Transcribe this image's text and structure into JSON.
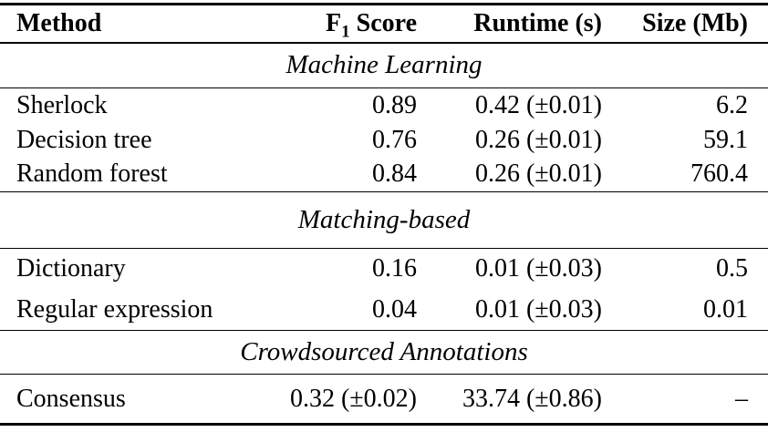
{
  "table": {
    "columns": [
      {
        "label": "Method"
      },
      {
        "label_main": "F",
        "label_sub": "1",
        "label_rest": " Score"
      },
      {
        "label": "Runtime (s)"
      },
      {
        "label": "Size (Mb)"
      }
    ],
    "sections": [
      {
        "title": "Machine Learning",
        "rows": [
          {
            "method": "Sherlock",
            "f1": "0.89",
            "runtime": "0.42 (±0.01)",
            "size": "6.2"
          },
          {
            "method": "Decision tree",
            "f1": "0.76",
            "runtime": "0.26 (±0.01)",
            "size": "59.1"
          },
          {
            "method": "Random forest",
            "f1": "0.84",
            "runtime": "0.26 (±0.01)",
            "size": "760.4"
          }
        ]
      },
      {
        "title": "Matching-based",
        "rows": [
          {
            "method": "Dictionary",
            "f1": "0.16",
            "runtime": "0.01 (±0.03)",
            "size": "0.5"
          },
          {
            "method": "Regular expression",
            "f1": "0.04",
            "runtime": "0.01 (±0.03)",
            "size": "0.01"
          }
        ]
      },
      {
        "title": "Crowdsourced Annotations",
        "rows": [
          {
            "method": "Consensus",
            "f1": "0.32 (±0.02)",
            "runtime": "33.74 (±0.86)",
            "size": "–"
          }
        ]
      }
    ]
  },
  "colors": {
    "text": "#000000",
    "background": "#ffffff",
    "rule": "#000000"
  }
}
